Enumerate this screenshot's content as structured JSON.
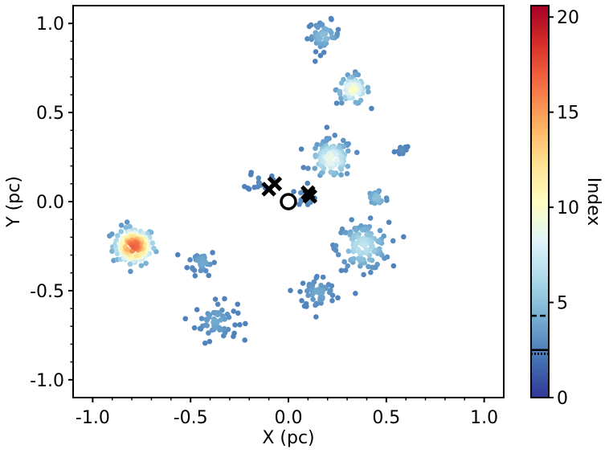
{
  "chart_data": {
    "type": "scatter",
    "title": "",
    "xlabel": "X (pc)",
    "ylabel": "Y (pc)",
    "xlim": [
      -1.1,
      1.1
    ],
    "ylim": [
      -1.1,
      1.1
    ],
    "xticks": [
      -1.0,
      -0.5,
      0.0,
      0.5,
      1.0
    ],
    "yticks": [
      -1.0,
      -0.5,
      0.0,
      0.5,
      1.0
    ],
    "xtick_labels": [
      "-1.0",
      "-0.5",
      "0.0",
      "0.5",
      "1.0"
    ],
    "ytick_labels": [
      "-1.0",
      "-0.5",
      "0.0",
      "0.5",
      "1.0"
    ],
    "grid": false,
    "colorbar": {
      "label": "Index",
      "colormap": "RdYlBu_r",
      "range": [
        0,
        20.6
      ],
      "ticks": [
        0,
        5,
        10,
        15,
        20
      ],
      "tick_labels": [
        "0",
        "5",
        "10",
        "15",
        "20"
      ],
      "dashed_line_at": 4.3,
      "dotted_line_at": 2.3,
      "solid_line_at": 2.5
    },
    "clusters": [
      {
        "x": -0.79,
        "y": -0.25,
        "radius": 0.09,
        "peak_index": 17,
        "count": 150
      },
      {
        "x": -0.44,
        "y": -0.34,
        "radius": 0.06,
        "peak_index": 4,
        "count": 35
      },
      {
        "x": -0.37,
        "y": -0.67,
        "radius": 0.09,
        "peak_index": 4,
        "count": 60
      },
      {
        "x": 0.18,
        "y": 0.93,
        "radius": 0.07,
        "peak_index": 5,
        "count": 50
      },
      {
        "x": 0.33,
        "y": 0.63,
        "radius": 0.07,
        "peak_index": 10,
        "count": 70
      },
      {
        "x": 0.22,
        "y": 0.24,
        "radius": 0.09,
        "peak_index": 9,
        "count": 110
      },
      {
        "x": 0.38,
        "y": -0.25,
        "radius": 0.11,
        "peak_index": 7,
        "count": 130
      },
      {
        "x": 0.45,
        "y": 0.02,
        "radius": 0.05,
        "peak_index": 5,
        "count": 30
      },
      {
        "x": 0.15,
        "y": -0.51,
        "radius": 0.08,
        "peak_index": 4,
        "count": 55
      },
      {
        "x": 0.58,
        "y": 0.29,
        "radius": 0.03,
        "peak_index": 3,
        "count": 12
      },
      {
        "x": -0.15,
        "y": 0.12,
        "radius": 0.05,
        "peak_index": 3,
        "count": 15
      },
      {
        "x": 0.09,
        "y": 0.03,
        "radius": 0.04,
        "peak_index": 4,
        "count": 15
      }
    ],
    "markers": [
      {
        "symbol": "x",
        "x": -0.1,
        "y": 0.07
      },
      {
        "symbol": "x",
        "x": -0.07,
        "y": 0.1
      },
      {
        "symbol": "x",
        "x": 0.1,
        "y": 0.05
      },
      {
        "symbol": "x",
        "x": 0.11,
        "y": 0.03
      },
      {
        "symbol": "o",
        "x": 0.0,
        "y": 0.0
      }
    ]
  }
}
